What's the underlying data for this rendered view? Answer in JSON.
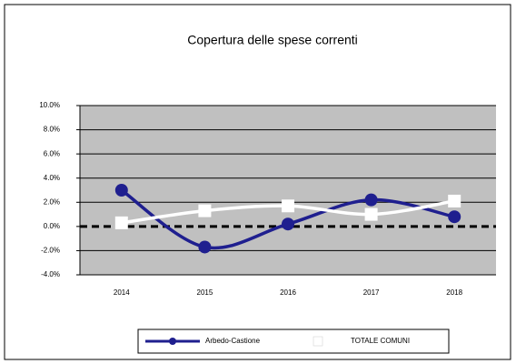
{
  "chart_data": {
    "type": "line",
    "title": "Copertura delle spese correnti",
    "categories": [
      "2014",
      "2015",
      "2016",
      "2017",
      "2018"
    ],
    "series": [
      {
        "name": "Arbedo-Castione",
        "color": "#1f1f8f",
        "values": [
          3.0,
          -1.7,
          0.2,
          2.2,
          0.8
        ]
      },
      {
        "name": "TOTALE COMUNI",
        "color": "#ffffff",
        "values": [
          0.3,
          1.3,
          1.7,
          1.0,
          2.1
        ]
      }
    ],
    "ylim": [
      -4,
      10
    ],
    "yticks": [
      {
        "value": -4,
        "label": "-4.0%"
      },
      {
        "value": -2,
        "label": "-2.0%"
      },
      {
        "value": 0,
        "label": "0.0%"
      },
      {
        "value": 2,
        "label": "2.0%"
      },
      {
        "value": 4,
        "label": "4.0%"
      },
      {
        "value": 6,
        "label": "6.0%"
      },
      {
        "value": 8,
        "label": "8.0%"
      },
      {
        "value": 10,
        "label": "10.0%"
      }
    ],
    "grid": true,
    "legend": "bottom"
  }
}
